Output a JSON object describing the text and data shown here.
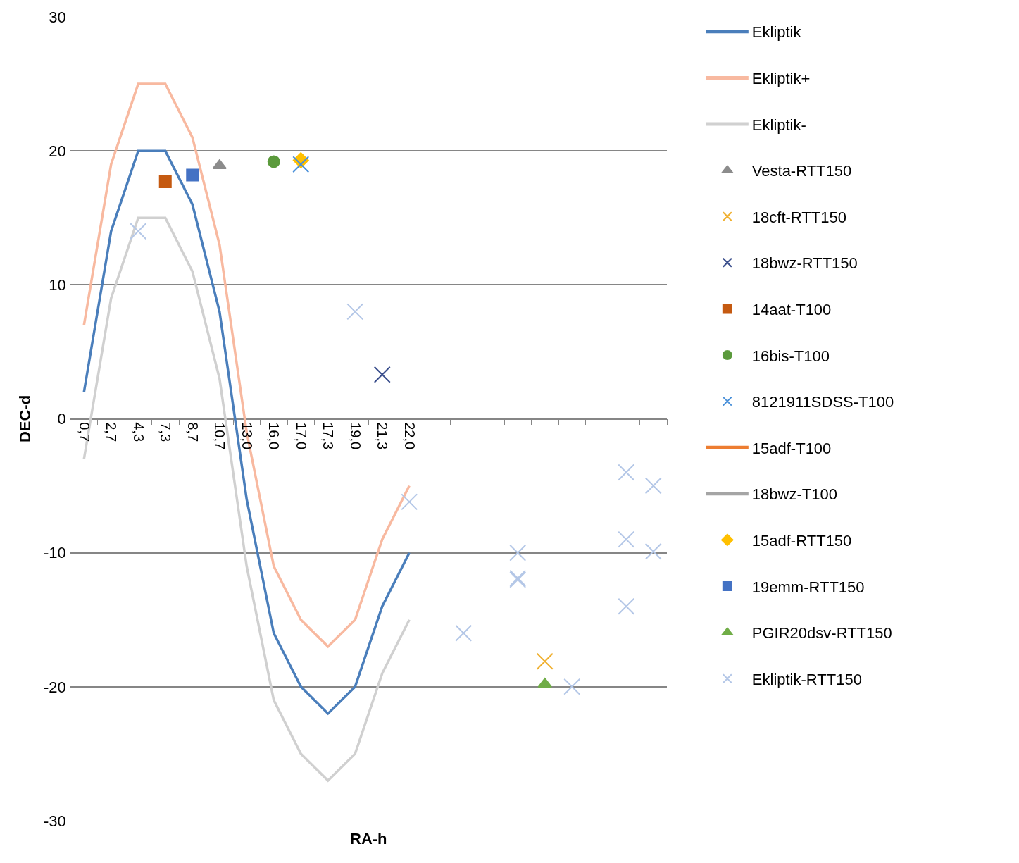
{
  "chart_data": {
    "type": "line",
    "xlabel": "RA-h",
    "ylabel": "DEC-d",
    "categories": [
      "0,7",
      "2,7",
      "4,3",
      "7,3",
      "8,7",
      "10,7",
      "13,0",
      "16,0",
      "17,0",
      "17,3",
      "19,0",
      "21,3",
      "22,0",
      null,
      null,
      null,
      null,
      null,
      null,
      null,
      null,
      null
    ],
    "ylim": [
      -30,
      30
    ],
    "yticks": [
      -30,
      -20,
      -10,
      0,
      10,
      20,
      30
    ],
    "grid": "y",
    "legend": "right",
    "series": [
      {
        "name": "Ekliptik",
        "color": "#4a7ebb",
        "values": [
          2,
          14,
          20,
          20,
          16,
          8,
          -6,
          -16,
          -20,
          -22,
          -20,
          -14,
          -10,
          null,
          null,
          null,
          null,
          null,
          null,
          null,
          null,
          null
        ]
      },
      {
        "name": "Ekliptik+",
        "color": "#f8b9a0",
        "values": [
          7,
          19,
          25,
          25,
          21,
          13,
          -1,
          -11,
          -15,
          -17,
          -15,
          -9,
          -5,
          null,
          null,
          null,
          null,
          null,
          null,
          null,
          null,
          null
        ]
      },
      {
        "name": "Ekliptik-",
        "color": "#d0d0d0",
        "values": [
          -3,
          9,
          15,
          15,
          11,
          3,
          -11,
          -21,
          -25,
          -27,
          -25,
          -19,
          -15,
          null,
          null,
          null,
          null,
          null,
          null,
          null,
          null,
          null
        ]
      },
      {
        "name": "Vesta-RTT150",
        "type": "scatter",
        "color": "#8c8c8c",
        "marker": "triangle",
        "values": [
          null,
          null,
          null,
          null,
          null,
          18.9,
          null,
          null,
          null,
          null,
          null,
          null,
          null,
          null,
          null,
          null,
          null,
          null,
          null,
          null,
          null,
          null
        ]
      },
      {
        "name": "18cft-RTT150",
        "type": "scatter",
        "color": "#f0b030",
        "marker": "cross",
        "values": [
          null,
          null,
          null,
          null,
          null,
          null,
          null,
          null,
          null,
          null,
          null,
          null,
          null,
          null,
          null,
          null,
          null,
          -18.1,
          null,
          null,
          null,
          null
        ]
      },
      {
        "name": "18bwz-RTT150",
        "type": "scatter",
        "color": "#3a4e8c",
        "marker": "cross",
        "values": [
          null,
          null,
          null,
          null,
          null,
          null,
          null,
          null,
          null,
          null,
          null,
          3.3,
          null,
          null,
          null,
          null,
          null,
          null,
          null,
          null,
          null,
          null
        ]
      },
      {
        "name": "14aat-T100",
        "type": "scatter",
        "color": "#c55a11",
        "marker": "square",
        "values": [
          null,
          null,
          null,
          17.7,
          null,
          null,
          null,
          null,
          null,
          null,
          null,
          null,
          null,
          null,
          null,
          null,
          null,
          null,
          null,
          null,
          null,
          null
        ]
      },
      {
        "name": "16bis-T100",
        "type": "scatter",
        "color": "#5b9a3c",
        "marker": "circle",
        "values": [
          null,
          null,
          null,
          null,
          null,
          null,
          null,
          19.2,
          null,
          null,
          null,
          null,
          null,
          null,
          null,
          null,
          null,
          null,
          null,
          null,
          null,
          null
        ]
      },
      {
        "name": "8121911SDSS-T100",
        "type": "scatter",
        "color": "#4a90d9",
        "marker": "cross",
        "values": [
          null,
          null,
          null,
          null,
          null,
          null,
          null,
          null,
          19.0,
          null,
          null,
          null,
          null,
          null,
          null,
          null,
          null,
          null,
          null,
          null,
          null,
          null
        ]
      },
      {
        "name": "15adf-T100",
        "type": "scatter",
        "color": "#ed7d31",
        "marker": "none",
        "values": [
          null,
          null,
          null,
          null,
          null,
          null,
          null,
          null,
          null,
          null,
          null,
          null,
          null,
          null,
          null,
          null,
          null,
          null,
          null,
          null,
          null,
          null
        ]
      },
      {
        "name": "18bwz-T100",
        "type": "scatter",
        "color": "#a5a5a5",
        "marker": "none",
        "values": [
          null,
          null,
          null,
          null,
          null,
          null,
          null,
          null,
          null,
          null,
          null,
          null,
          null,
          null,
          null,
          null,
          null,
          null,
          null,
          null,
          null,
          null
        ]
      },
      {
        "name": "15adf-RTT150",
        "type": "scatter",
        "color": "#ffc000",
        "marker": "diamond",
        "values": [
          null,
          null,
          null,
          null,
          null,
          null,
          null,
          null,
          19.3,
          null,
          null,
          null,
          null,
          null,
          null,
          null,
          null,
          null,
          null,
          null,
          null,
          null
        ]
      },
      {
        "name": "19emm-RTT150",
        "type": "scatter",
        "color": "#4472c4",
        "marker": "square",
        "values": [
          null,
          null,
          null,
          null,
          18.2,
          null,
          null,
          null,
          null,
          null,
          null,
          null,
          null,
          null,
          null,
          null,
          null,
          null,
          null,
          null,
          null,
          null
        ]
      },
      {
        "name": "PGIR20dsv-RTT150",
        "type": "scatter",
        "color": "#70ad47",
        "marker": "triangle",
        "values": [
          null,
          null,
          null,
          null,
          null,
          null,
          null,
          null,
          null,
          null,
          null,
          null,
          null,
          null,
          null,
          null,
          null,
          -19.8,
          null,
          null,
          null,
          null
        ]
      },
      {
        "name": "Ekliptik-RTT150",
        "type": "scatter",
        "color": "#b4c7e7",
        "marker": "cross",
        "values": [
          null,
          null,
          14.0,
          null,
          null,
          null,
          null,
          null,
          null,
          null,
          8.0,
          null,
          -6.2,
          null,
          -16.0,
          null,
          -10.0,
          null,
          -20.0,
          null,
          -4.0,
          -5.0
        ]
      },
      {
        "type": "scatter",
        "color": "#b4c7e7",
        "marker": "cross",
        "values": [
          null,
          null,
          null,
          null,
          null,
          null,
          null,
          null,
          null,
          null,
          null,
          null,
          null,
          null,
          null,
          null,
          -11.9,
          null,
          null,
          null,
          -9.0,
          -9.9
        ]
      },
      {
        "type": "scatter",
        "color": "#b4c7e7",
        "marker": "cross",
        "values": [
          null,
          null,
          null,
          null,
          null,
          null,
          null,
          null,
          null,
          null,
          null,
          null,
          null,
          null,
          null,
          null,
          -12.0,
          null,
          null,
          null,
          -14.0,
          null
        ]
      }
    ]
  }
}
